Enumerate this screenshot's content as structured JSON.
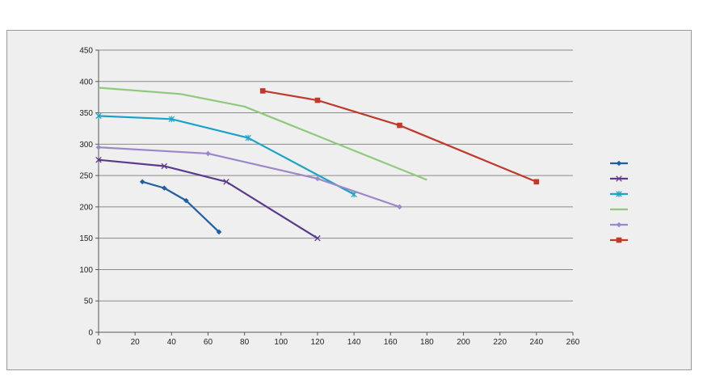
{
  "chart_data": {
    "type": "line",
    "title": "",
    "xlabel": "",
    "ylabel": "",
    "xlim": [
      0,
      260
    ],
    "ylim": [
      0,
      450
    ],
    "x_ticks": [
      0,
      20,
      40,
      60,
      80,
      100,
      120,
      140,
      160,
      180,
      200,
      220,
      240,
      260
    ],
    "y_ticks": [
      0,
      50,
      100,
      150,
      200,
      250,
      300,
      350,
      400,
      450
    ],
    "grid": "horizontal",
    "legend_position": "right",
    "series": [
      {
        "color": "#1f5fa6",
        "marker": "diamond",
        "x": [
          24,
          36,
          48,
          66
        ],
        "y": [
          240,
          230,
          210,
          160
        ]
      },
      {
        "color": "#5b3a8c",
        "marker": "x",
        "x": [
          0,
          36,
          70,
          120
        ],
        "y": [
          275,
          265,
          240,
          150
        ]
      },
      {
        "color": "#1aa3c7",
        "marker": "asterisk",
        "x": [
          0,
          40,
          82,
          140
        ],
        "y": [
          345,
          340,
          310,
          220
        ]
      },
      {
        "color": "#8fc97a",
        "marker": "none",
        "x": [
          0,
          45,
          80,
          180
        ],
        "y": [
          390,
          380,
          360,
          243
        ]
      },
      {
        "color": "#9b87c9",
        "marker": "diamond",
        "x": [
          0,
          60,
          120,
          165
        ],
        "y": [
          295,
          285,
          245,
          200
        ]
      },
      {
        "color": "#c0392b",
        "marker": "square",
        "x": [
          90,
          120,
          165,
          240
        ],
        "y": [
          385,
          370,
          330,
          240
        ]
      }
    ]
  }
}
